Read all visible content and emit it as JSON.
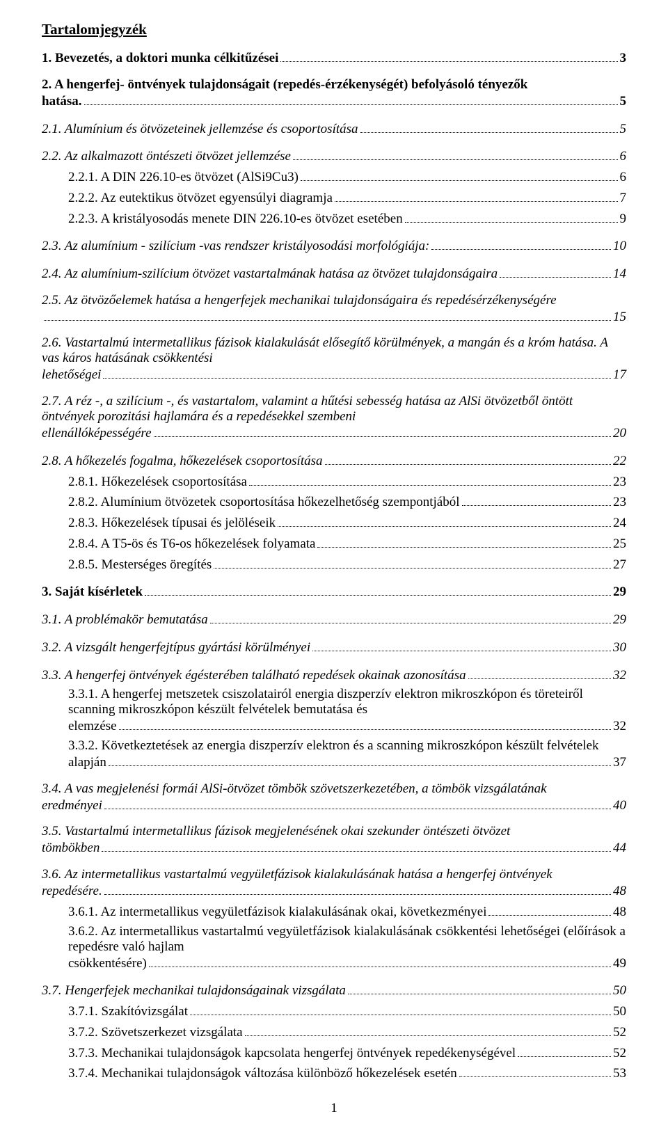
{
  "doc": {
    "title": "Tartalomjegyzék",
    "page_footer": "1",
    "entries": [
      {
        "text": "1. Bevezetés, a doktori munka célkitűzései",
        "page": "3",
        "style": "bold",
        "indent": 0,
        "blockTop": true
      },
      {
        "text": "2. A hengerfej- öntvények tulajdonságait (repedés-érzékenységét) befolyásoló tényezők hatása.",
        "page": "5",
        "style": "bold",
        "indent": 0,
        "blockTop": true,
        "nobreak_page": true
      },
      {
        "text": "2.1. Alumínium és ötvözeteinek jellemzése és csoportosítása",
        "page": "5",
        "style": "italic",
        "indent": 0,
        "blockTop": true
      },
      {
        "text": "2.2. Az alkalmazott öntészeti ötvözet jellemzése",
        "page": "6",
        "style": "italic",
        "indent": 0,
        "blockTop": true
      },
      {
        "text": "2.2.1. A DIN 226.10-es ötvözet (AlSi9Cu3)",
        "page": "6",
        "style": "normal",
        "indent": 1
      },
      {
        "text": "2.2.2. Az eutektikus ötvözet egyensúlyi diagramja",
        "page": "7",
        "style": "normal",
        "indent": 1
      },
      {
        "text": "2.2.3. A kristályosodás menete DIN 226.10-es ötvözet esetében",
        "page": "9",
        "style": "normal",
        "indent": 1
      },
      {
        "text": "2.3. Az alumínium - szilícium -vas rendszer kristályosodási morfológiája:",
        "page": "10",
        "style": "italic",
        "indent": 0,
        "blockTop": true
      },
      {
        "text": "2.4. Az alumínium-szilícium ötvözet vastartalmának hatása az ötvözet tulajdonságaira",
        "page": "14",
        "style": "italic",
        "indent": 0,
        "blockTop": true
      },
      {
        "text": "2.5. Az ötvözőelemek hatása a hengerfejek mechanikai tulajdonságaira és repedésérzékenységére",
        "page": "15",
        "style": "italic",
        "indent": 0,
        "blockTop": true,
        "wrapBefore": true
      },
      {
        "text": "2.6. Vastartalmú intermetallikus fázisok kialakulását elősegítő körülmények, a mangán és a króm hatása. A vas káros hatásának csökkentési lehetőségei",
        "page": "17",
        "style": "italic",
        "indent": 0,
        "blockTop": true
      },
      {
        "text": "2.7. A réz -, a szilícium -, és vastartalom, valamint a hűtési sebesség hatása az AlSi ötvözetből öntött öntvények porozitási hajlamára és a repedésekkel szembeni ellenállóképességére",
        "page": "20",
        "style": "italic",
        "indent": 0,
        "blockTop": true
      },
      {
        "text": "2.8. A hőkezelés fogalma, hőkezelések csoportosítása",
        "page": "22",
        "style": "italic",
        "indent": 0,
        "blockTop": true
      },
      {
        "text": "2.8.1. Hőkezelések csoportosítása",
        "page": "23",
        "style": "normal",
        "indent": 1
      },
      {
        "text": "2.8.2. Alumínium ötvözetek csoportosítása hőkezelhetőség szempontjából",
        "page": "23",
        "style": "normal",
        "indent": 1
      },
      {
        "text": "2.8.3. Hőkezelések típusai és jelöléseik",
        "page": "24",
        "style": "normal",
        "indent": 1
      },
      {
        "text": "2.8.4. A T5-ös és T6-os hőkezelések folyamata",
        "page": "25",
        "style": "normal",
        "indent": 1
      },
      {
        "text": "2.8.5. Mesterséges öregítés",
        "page": "27",
        "style": "normal",
        "indent": 1
      },
      {
        "text": "3. Saját kísérletek",
        "page": "29",
        "style": "bold",
        "indent": 0,
        "blockTop": true
      },
      {
        "text": "3.1. A problémakör bemutatása",
        "page": "29",
        "style": "italic",
        "indent": 0,
        "blockTop": true
      },
      {
        "text": "3.2. A vizsgált hengerfejtípus gyártási körülményei",
        "page": "30",
        "style": "italic",
        "indent": 0,
        "blockTop": true
      },
      {
        "text": "3.3. A hengerfej öntvények égésterében található repedések okainak azonosítása",
        "page": "32",
        "style": "italic",
        "indent": 0,
        "blockTop": true
      },
      {
        "text": "3.3.1. A hengerfej metszetek csiszolatairól energia diszperzív elektron mikroszkópon és töreteiről scanning mikroszkópon készült felvételek bemutatása és elemzése",
        "page": "32",
        "style": "normal",
        "indent": 1
      },
      {
        "text": "3.3.2. Következtetések az energia diszperzív elektron és a scanning mikroszkópon készült felvételek alapján",
        "page": "37",
        "style": "normal",
        "indent": 1
      },
      {
        "text": "3.4. A vas megjelenési formái AlSi-ötvözet tömbök szövetszerkezetében, a tömbök  vizsgálatának eredményei",
        "page": "40",
        "style": "italic",
        "indent": 0,
        "blockTop": true
      },
      {
        "text": "3.5. Vastartalmú intermetallikus fázisok megjelenésének okai szekunder öntészeti ötvözet tömbökben",
        "page": "44",
        "style": "italic",
        "indent": 0,
        "blockTop": true
      },
      {
        "text": "3.6. Az intermetallikus vastartalmú vegyületfázisok kialakulásának hatása a hengerfej öntvények repedésére.",
        "page": "48",
        "style": "italic",
        "indent": 0,
        "blockTop": true
      },
      {
        "text": "3.6.1. Az intermetallikus vegyületfázisok kialakulásának okai, következményei",
        "page": "48",
        "style": "normal",
        "indent": 1
      },
      {
        "text": "3.6.2. Az intermetallikus vastartalmú vegyületfázisok kialakulásának csökkentési lehetőségei (előírások a repedésre való hajlam csökkentésére)",
        "page": "49",
        "style": "normal",
        "indent": 1
      },
      {
        "text": "3.7. Hengerfejek mechanikai tulajdonságainak vizsgálata",
        "page": "50",
        "style": "italic",
        "indent": 0,
        "blockTop": true
      },
      {
        "text": "3.7.1. Szakítóvizsgálat",
        "page": "50",
        "style": "normal",
        "indent": 1
      },
      {
        "text": "3.7.2. Szövetszerkezet vizsgálata",
        "page": "52",
        "style": "normal",
        "indent": 1
      },
      {
        "text": "3.7.3. Mechanikai tulajdonságok kapcsolata hengerfej öntvények repedékenységével",
        "page": "52",
        "style": "normal",
        "indent": 1
      },
      {
        "text": "3.7.4. Mechanikai tulajdonságok változása különböző hőkezelések esetén",
        "page": "53",
        "style": "normal",
        "indent": 1
      }
    ]
  },
  "styles": {
    "font_family": "Times New Roman",
    "font_size_pt": 14,
    "background": "#ffffff",
    "text_color": "#000000",
    "leader_style": "dotted"
  }
}
